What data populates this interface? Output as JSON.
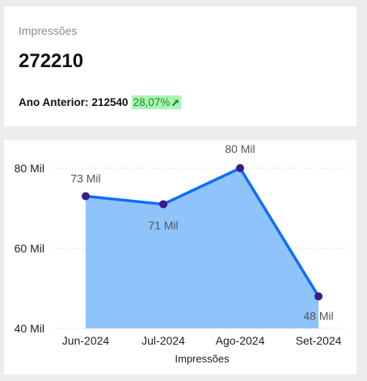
{
  "kpi": {
    "label": "Impressões",
    "value": "272210",
    "prev_label": "Ano Anterior:",
    "prev_value": "212540",
    "change": "28,07%",
    "change_icon": "arrow-up-right-icon",
    "change_color": "#1a8c2e",
    "change_bg": "#a9f5b4"
  },
  "chart_data": {
    "type": "area",
    "categories": [
      "Jun-2024",
      "Jul-2024",
      "Ago-2024",
      "Set-2024"
    ],
    "values": [
      73,
      71,
      80,
      48
    ],
    "data_labels": [
      "73 Mil",
      "71 Mil",
      "80 Mil",
      "48 Mil"
    ],
    "y_ticks": [
      40,
      60,
      80
    ],
    "y_tick_labels": [
      "40 Mil",
      "60 Mil",
      "80 Mil"
    ],
    "ylim": [
      40,
      83
    ],
    "xlabel": "Impressões",
    "ylabel": "",
    "grid": true,
    "colors": {
      "line": "#0d6efd",
      "area": "#8ec4fb",
      "marker": "#3a1a8c"
    }
  }
}
